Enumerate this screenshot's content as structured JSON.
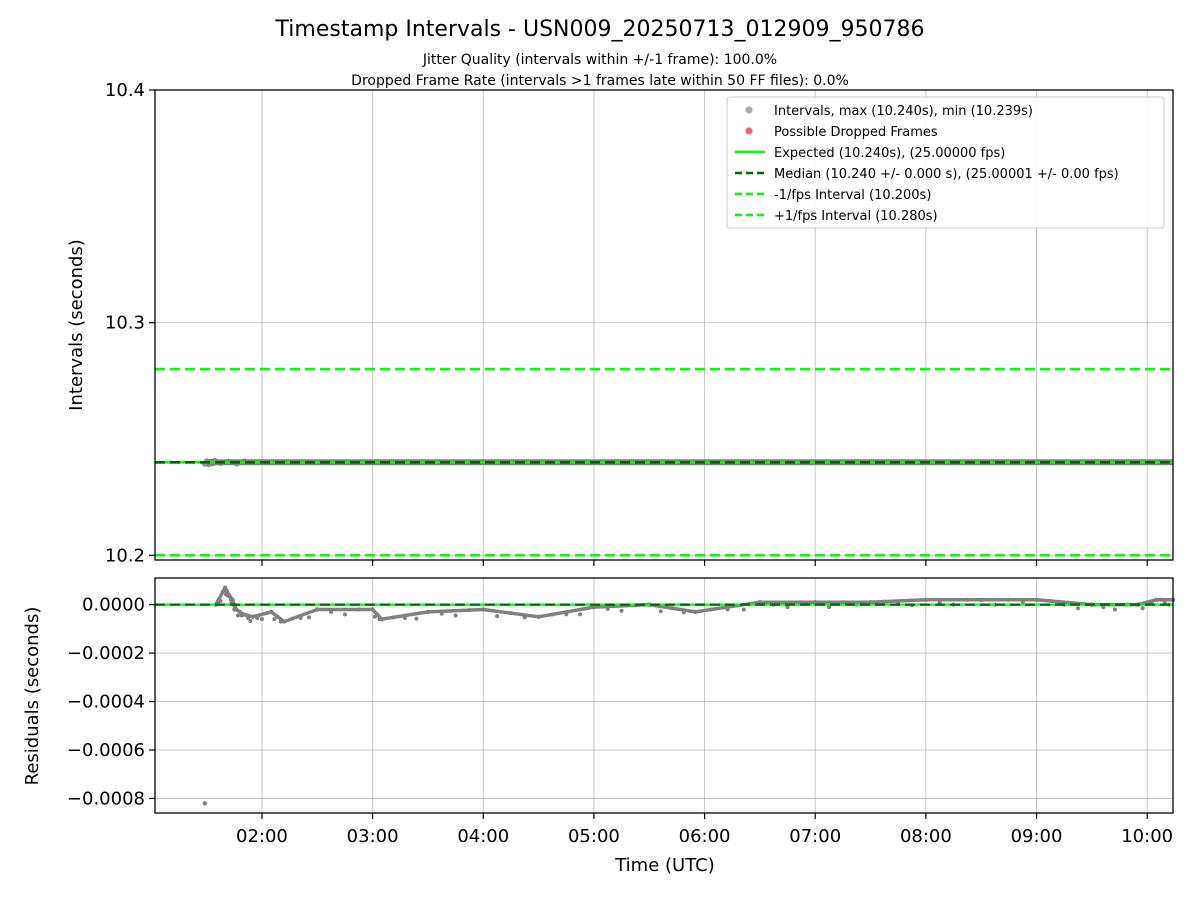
{
  "chart_data": [
    {
      "panel": "intervals",
      "type": "scatter",
      "title": "Timestamp Intervals - USN009_20250713_012909_950786",
      "subtitle_lines": [
        "Jitter Quality (intervals within +/-1 frame): 100.0%",
        "Dropped Frame Rate (intervals >1 frames late within 50 FF files): 0.0%"
      ],
      "ylabel": "Intervals (seconds)",
      "ylim": [
        10.198,
        10.4
      ],
      "xlim": [
        "01:02",
        "10:14"
      ],
      "yticks": [
        10.2,
        10.3,
        10.4
      ],
      "ytick_labels": [
        "10.2",
        "10.3",
        "10.4"
      ],
      "grid": true,
      "legend_position": "top-right",
      "legend": [
        {
          "label": "Intervals, max (10.240s), min (10.239s)",
          "kind": "dot",
          "color": "#aaaaaa"
        },
        {
          "label": "Possible Dropped Frames",
          "kind": "dot",
          "color": "#ff6666"
        },
        {
          "label": "Expected (10.240s), (25.00000 fps)",
          "kind": "line",
          "color": "#00ff00"
        },
        {
          "label": "Median (10.240 +/- 0.000 s), (25.00001 +/- 0.00 fps)",
          "kind": "dash",
          "color": "#006400"
        },
        {
          "label": "-1/fps Interval (10.200s)",
          "kind": "dash",
          "color": "#00ff00"
        },
        {
          "label": "+1/fps Interval (10.280s)",
          "kind": "dash",
          "color": "#00ff00"
        }
      ],
      "reference_lines": [
        {
          "name": "Expected",
          "y": 10.24,
          "style": "solid",
          "color": "#00ff00"
        },
        {
          "name": "Median",
          "y": 10.24,
          "style": "dashed",
          "color": "#006400"
        },
        {
          "name": "-1/fps",
          "y": 10.2,
          "style": "dashed",
          "color": "#00ff00"
        },
        {
          "name": "+1/fps",
          "y": 10.28,
          "style": "dashed",
          "color": "#00ff00"
        }
      ],
      "series": [
        {
          "name": "Intervals",
          "x_start": "01:29",
          "x_end": "10:14",
          "y": 10.24,
          "y_min": 10.239,
          "y_max": 10.24,
          "color": "#808080"
        }
      ]
    },
    {
      "panel": "residuals",
      "type": "scatter",
      "xlabel": "Time (UTC)",
      "ylabel": "Residuals (seconds)",
      "ylim": [
        -0.00086,
        0.00011
      ],
      "yticks": [
        0.0,
        -0.0002,
        -0.0004,
        -0.0006,
        -0.0008
      ],
      "ytick_labels": [
        "0.0000",
        "−0.0002",
        "−0.0004",
        "−0.0006",
        "−0.0008"
      ],
      "xticks": [
        "02:00",
        "03:00",
        "04:00",
        "05:00",
        "06:00",
        "07:00",
        "08:00",
        "09:00",
        "10:00"
      ],
      "grid": true,
      "reference_lines": [
        {
          "name": "Expected",
          "y": 0.0,
          "style": "solid",
          "color": "#00ff00"
        },
        {
          "name": "Median",
          "y": 0.0,
          "style": "dashed",
          "color": "#006400"
        }
      ],
      "series": [
        {
          "name": "Residuals",
          "color": "#808080",
          "points": [
            {
              "x": "01:29",
              "y": -0.00082
            },
            {
              "x": "01:35",
              "y": 0.0
            },
            {
              "x": "01:40",
              "y": 7e-05
            },
            {
              "x": "01:42",
              "y": 4e-05
            },
            {
              "x": "01:44",
              "y": 2e-05
            },
            {
              "x": "01:46",
              "y": -2e-05
            },
            {
              "x": "01:50",
              "y": -4e-05
            },
            {
              "x": "01:55",
              "y": -5e-05
            },
            {
              "x": "02:05",
              "y": -3e-05
            },
            {
              "x": "02:12",
              "y": -7e-05
            },
            {
              "x": "02:30",
              "y": -2e-05
            },
            {
              "x": "03:00",
              "y": -2e-05
            },
            {
              "x": "03:05",
              "y": -6e-05
            },
            {
              "x": "03:30",
              "y": -3e-05
            },
            {
              "x": "04:00",
              "y": -2e-05
            },
            {
              "x": "04:30",
              "y": -5e-05
            },
            {
              "x": "05:00",
              "y": -1e-05
            },
            {
              "x": "05:30",
              "y": 0.0
            },
            {
              "x": "05:55",
              "y": -3e-05
            },
            {
              "x": "06:30",
              "y": 1e-05
            },
            {
              "x": "07:00",
              "y": 1e-05
            },
            {
              "x": "07:30",
              "y": 1e-05
            },
            {
              "x": "08:00",
              "y": 2e-05
            },
            {
              "x": "08:30",
              "y": 2e-05
            },
            {
              "x": "09:00",
              "y": 2e-05
            },
            {
              "x": "09:30",
              "y": 0.0
            },
            {
              "x": "09:55",
              "y": 0.0
            },
            {
              "x": "10:05",
              "y": 2e-05
            },
            {
              "x": "10:14",
              "y": 2e-05
            }
          ]
        }
      ]
    }
  ]
}
